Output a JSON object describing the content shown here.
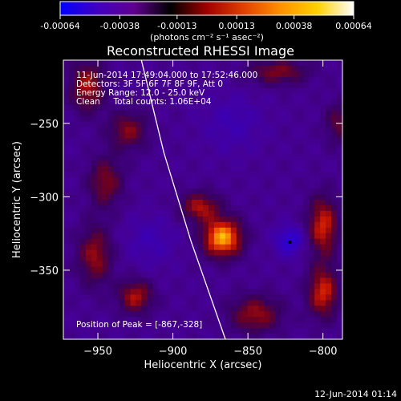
{
  "chart_data": {
    "type": "heatmap",
    "title": "Reconstructed RHESSI Image",
    "xlabel": "Heliocentric X (arcsec)",
    "ylabel": "Heliocentric Y (arcsec)",
    "xlim": [
      -973,
      -787
    ],
    "ylim": [
      -397,
      -207
    ],
    "x_ticks": [
      -950,
      -900,
      -850,
      -800
    ],
    "x_tick_labels": [
      "−950",
      "−900",
      "−850",
      "−800"
    ],
    "y_ticks": [
      -250,
      -300,
      -350
    ],
    "y_tick_labels": [
      "−250",
      "−300",
      "−350"
    ],
    "colorbar": {
      "range": [
        -0.00064,
        0.00064
      ],
      "ticks": [
        -0.00064,
        -0.00038,
        -0.00013,
        0.00013,
        0.00038,
        0.00064
      ],
      "tick_labels": [
        "-0.00064",
        "-0.00038",
        "-0.00013",
        "0.00013",
        "0.00038",
        "0.00064"
      ],
      "unit_label": "(photons cm⁻² s⁻¹ asec⁻²)",
      "colors": [
        "#0000ff",
        "#4000c0",
        "#600090",
        "#000000",
        "#a00000",
        "#e04000",
        "#ff9000",
        "#ffd000",
        "#ffffff"
      ]
    },
    "annotations": [
      "11-Jun-2014 17:49:04.000 to 17:52:46.000",
      "Detectors: 3F 5F 6F 7F 8F 9F, Att 0",
      "Energy Range: 12.0 - 25.0 keV",
      "Clean     Total counts: 1.06E+04"
    ],
    "peak_label": "Position of Peak = [-867,-328]",
    "peak": {
      "x": -867,
      "y": -328
    },
    "limb_curve": [
      [
        -921,
        -207
      ],
      [
        -906,
        -270
      ],
      [
        -888,
        -330
      ],
      [
        -865,
        -397
      ]
    ],
    "sources": [
      {
        "x": -867,
        "y": -328,
        "sx": 9,
        "sy": 9,
        "amp": 1.0
      },
      {
        "x": -882,
        "y": -307,
        "sx": 9,
        "sy": 7,
        "amp": 0.55
      },
      {
        "x": -957,
        "y": -225,
        "sx": 8,
        "sy": 12,
        "amp": 0.55
      },
      {
        "x": -930,
        "y": -255,
        "sx": 9,
        "sy": 9,
        "amp": 0.45
      },
      {
        "x": -945,
        "y": -290,
        "sx": 8,
        "sy": 12,
        "amp": 0.45
      },
      {
        "x": -952,
        "y": -340,
        "sx": 8,
        "sy": 14,
        "amp": 0.5
      },
      {
        "x": -925,
        "y": -368,
        "sx": 8,
        "sy": 8,
        "amp": 0.55
      },
      {
        "x": -845,
        "y": -380,
        "sx": 12,
        "sy": 9,
        "amp": 0.5
      },
      {
        "x": -800,
        "y": -320,
        "sx": 7,
        "sy": 14,
        "amp": 0.65
      },
      {
        "x": -800,
        "y": -365,
        "sx": 7,
        "sy": 12,
        "amp": 0.65
      },
      {
        "x": -830,
        "y": -215,
        "sx": 14,
        "sy": 6,
        "amp": 0.45
      },
      {
        "x": -790,
        "y": -250,
        "sx": 6,
        "sy": 10,
        "amp": 0.35
      },
      {
        "x": -822,
        "y": -330,
        "sx": 7,
        "sy": 7,
        "amp": -0.45
      },
      {
        "x": -860,
        "y": -250,
        "sx": 14,
        "sy": 14,
        "amp": -0.2
      },
      {
        "x": -915,
        "y": -330,
        "sx": 12,
        "sy": 12,
        "amp": -0.2
      }
    ],
    "grid": false
  },
  "footer": {
    "timestamp": "12-Jun-2014 01:14"
  }
}
